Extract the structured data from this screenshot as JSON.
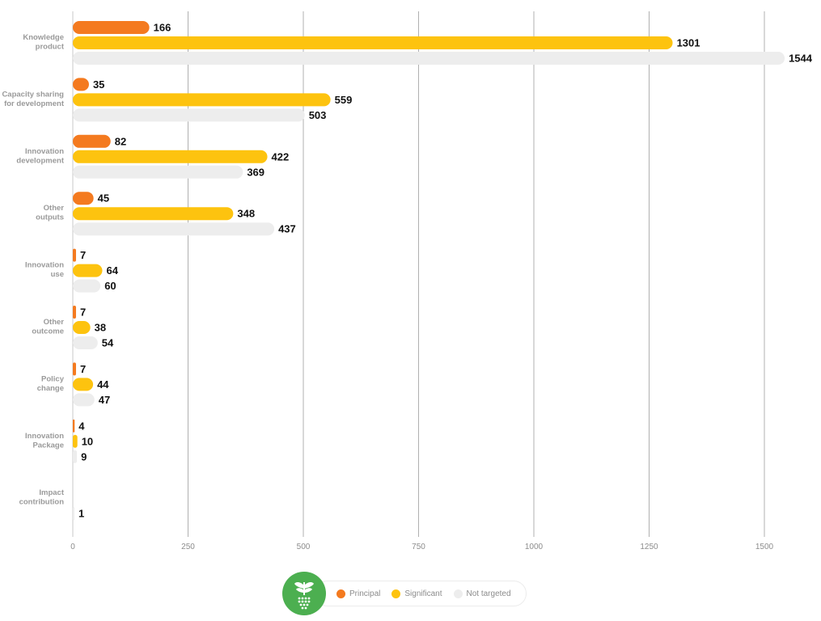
{
  "chart_data": {
    "type": "bar",
    "orientation": "horizontal",
    "categories": [
      "Knowledge product",
      "Capacity sharing for development",
      "Innovation development",
      "Other outputs",
      "Innovation use",
      "Other outcome",
      "Policy change",
      "Innovation Package",
      "Impact contribution"
    ],
    "category_lines": [
      [
        "Knowledge",
        "product"
      ],
      [
        "Capacity sharing",
        "for development"
      ],
      [
        "Innovation",
        "development"
      ],
      [
        "Other",
        "outputs"
      ],
      [
        "Innovation",
        "use"
      ],
      [
        "Other",
        "outcome"
      ],
      [
        "Policy",
        "change"
      ],
      [
        "Innovation",
        "Package"
      ],
      [
        "Impact",
        "contribution"
      ]
    ],
    "series": [
      {
        "name": "Principal",
        "color": "#f47a1f",
        "values": [
          166,
          35,
          82,
          45,
          7,
          7,
          7,
          4,
          null
        ]
      },
      {
        "name": "Significant",
        "color": "#fdc30f",
        "values": [
          1301,
          559,
          422,
          348,
          64,
          38,
          44,
          10,
          null
        ]
      },
      {
        "name": "Not targeted",
        "color": "#ededed",
        "values": [
          1544,
          503,
          369,
          437,
          60,
          54,
          47,
          9,
          1
        ]
      }
    ],
    "xlim": [
      0,
      1544
    ],
    "xticks": [
      0,
      250,
      500,
      750,
      1000,
      1250,
      1500
    ],
    "grid": "vertical",
    "legend_position": "bottom-center",
    "data_labels": true
  },
  "legend": {
    "logo_icon": "sprout-icon",
    "items": [
      {
        "label": "Principal",
        "color": "#f47a1f"
      },
      {
        "label": "Significant",
        "color": "#fdc30f"
      },
      {
        "label": "Not targeted",
        "color": "#ededed"
      }
    ]
  }
}
